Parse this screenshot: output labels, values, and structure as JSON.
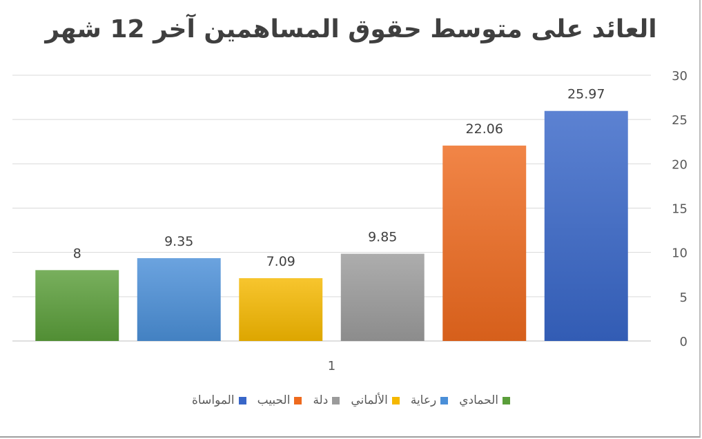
{
  "chart_data": {
    "type": "bar",
    "title": "العائد على متوسط حقوق المساهمين آخر 12 شهر",
    "categories": [
      "1"
    ],
    "series": [
      {
        "name": "الحمادي",
        "values": [
          8
        ],
        "label": "8",
        "color": "#5a9e3a"
      },
      {
        "name": "رعاية",
        "values": [
          9.35
        ],
        "label": "9.35",
        "color": "#4a8fd8"
      },
      {
        "name": "الألماني",
        "values": [
          7.09
        ],
        "label": "7.09",
        "color": "#f5b800"
      },
      {
        "name": "دلة",
        "values": [
          9.85
        ],
        "label": "9.85",
        "color": "#9b9b9b"
      },
      {
        "name": "الحبيب",
        "values": [
          22.06
        ],
        "label": "22.06",
        "color": "#ee6a1e"
      },
      {
        "name": "المواساة",
        "values": [
          25.97
        ],
        "label": "25.97",
        "color": "#3866c8"
      }
    ],
    "ylim": [
      0,
      30
    ],
    "yticks": [
      "0",
      "5",
      "10",
      "15",
      "20",
      "25",
      "30"
    ],
    "y_axis_side": "right",
    "grid": true,
    "legend": "bottom"
  }
}
